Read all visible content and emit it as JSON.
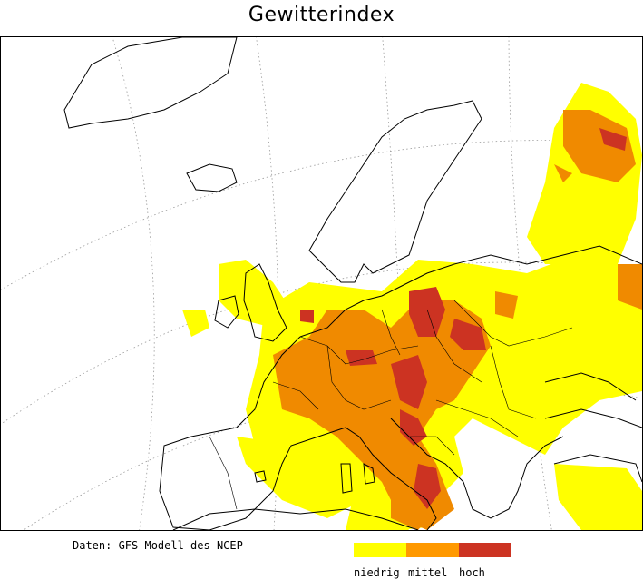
{
  "title": "Gewitterindex",
  "source": "Daten: GFS-Modell des NCEP",
  "legend": [
    {
      "label": "niedrig",
      "color": "#ffff00"
    },
    {
      "label": "mittel",
      "color": "#ff9900"
    },
    {
      "label": "hoch",
      "color": "#cc3322"
    }
  ],
  "colors": {
    "low": "#ffff00",
    "mid": "#f08a00",
    "high": "#cc3322",
    "coast": "#000000",
    "grid": "#999999"
  }
}
